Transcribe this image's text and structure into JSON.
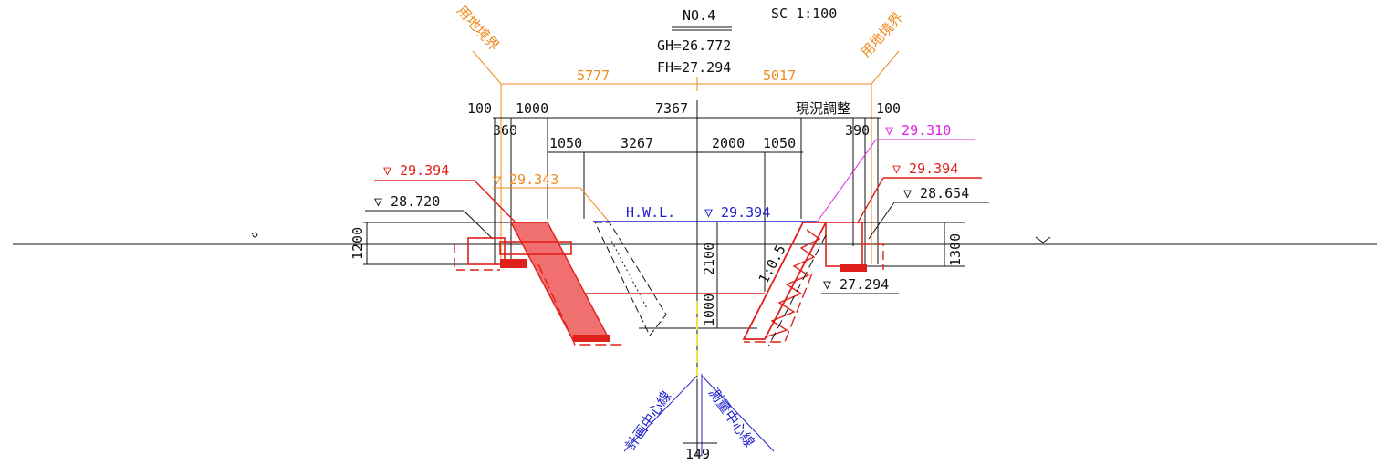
{
  "header": {
    "section_no": "NO.4",
    "scale": "SC 1:100",
    "gh": "GH=26.772",
    "fh": "FH=27.294"
  },
  "boundary_labels": {
    "left": "用地境界",
    "right": "用地境界"
  },
  "dims_top": {
    "left_width": "5777",
    "right_width": "5017",
    "d100_left": "100",
    "d1000": "1000",
    "d7367": "7367",
    "note_adjust": "現況調整",
    "d100_right": "100",
    "d360": "360",
    "d390": "390",
    "d1050_left": "1050",
    "d3267": "3267",
    "d2000": "2000",
    "d1050_right": "1050"
  },
  "elevations": {
    "left_red": "▽ 29.394",
    "left_orange": "▽ 29.343",
    "left_black": "▽ 28.720",
    "hwl_label": "H.W.L.",
    "hwl_value": "▽ 29.394",
    "right_magenta": "▽ 29.310",
    "right_red": "▽ 29.394",
    "right_black": "▽ 28.654",
    "bottom": "▽ 27.294"
  },
  "dims_vertical": {
    "left_height": "1200",
    "right_height": "1300",
    "depth_2100": "2100",
    "depth_1000": "1000"
  },
  "slope": "1:0.5",
  "center_lines": {
    "plan": "計画中心線",
    "survey": "測量中心線",
    "offset": "149"
  },
  "colors": {
    "black": "#111111",
    "red": "#e0201a",
    "orange": "#f08a1c",
    "blue": "#2020d0",
    "magenta": "#e020e0",
    "yellow": "#f2e24a"
  }
}
